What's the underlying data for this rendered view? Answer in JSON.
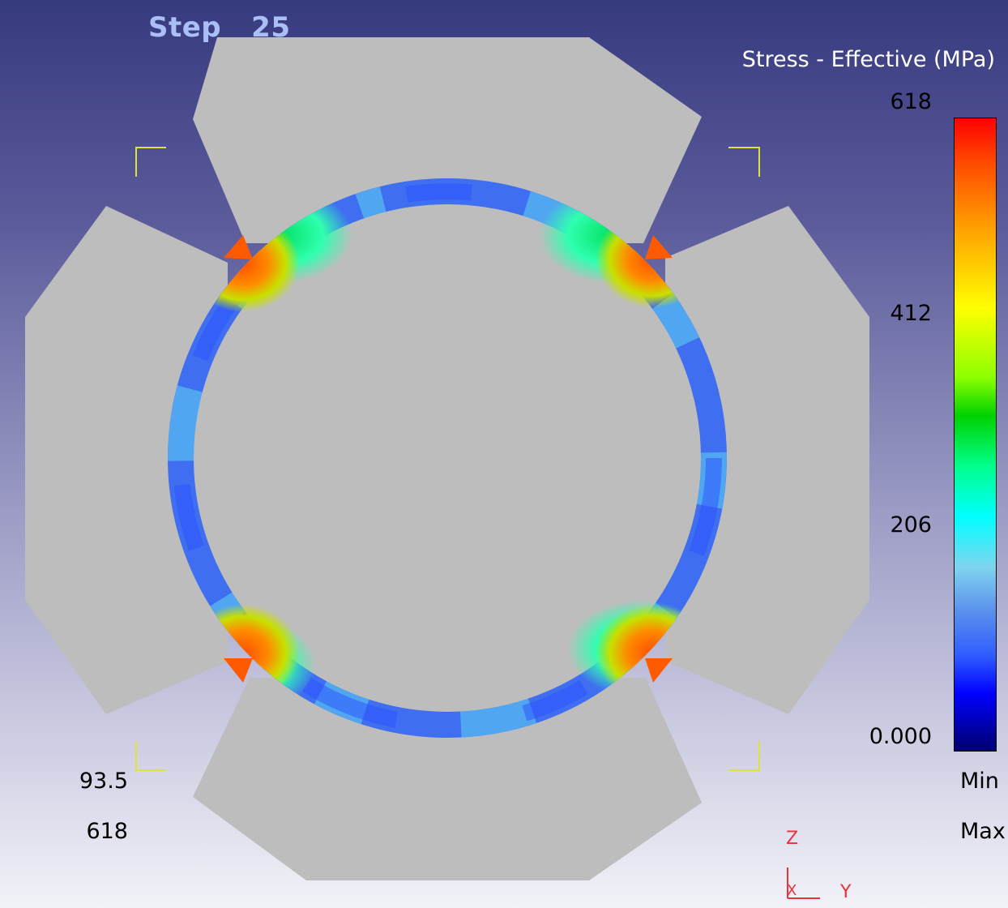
{
  "viewport": {
    "step_label": "Step",
    "step_number": "25"
  },
  "legend": {
    "title": "Stress - Effective (MPa)",
    "ticks": [
      "618",
      "412",
      "206",
      "0.000"
    ],
    "min_value": "93.5",
    "min_label": "Min",
    "max_value": "618",
    "max_label": "Max",
    "colormap": [
      "#ff0000",
      "#ff9d00",
      "#ffff00",
      "#00d200",
      "#00ffff",
      "#5a90ec",
      "#0000ff",
      "#00006e"
    ]
  },
  "axis_triad": {
    "vertical": "Z",
    "horizontal": "Y",
    "out_of_plane": "X"
  },
  "colors": {
    "background_top": "#363a7e",
    "background_bottom": "#f2f2f8",
    "die_gray": "#bdbdbd",
    "bracket_yellow": "#e1e13c",
    "triad_red": "#e8323c"
  }
}
